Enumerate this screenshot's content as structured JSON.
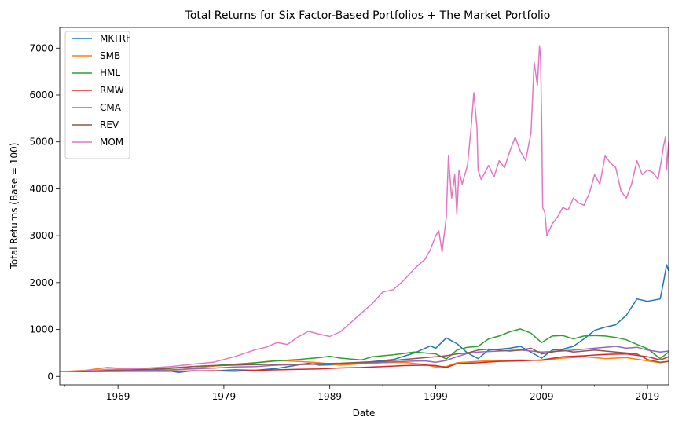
{
  "chart_data": {
    "type": "line",
    "title": "Total Returns for Six Factor-Based Portfolios + The Market Portfolio",
    "xlabel": "Date",
    "ylabel": "Total Returns (Base = 100)",
    "xlim": [
      1963.5,
      2021.0
    ],
    "ylim": [
      -180,
      7440
    ],
    "x_ticks": [
      1969,
      1979,
      1989,
      1999,
      2009,
      2019
    ],
    "y_ticks": [
      0,
      1000,
      2000,
      3000,
      4000,
      5000,
      6000,
      7000
    ],
    "legend_position": "upper left",
    "grid": false,
    "series": [
      {
        "name": "MKTRF",
        "color": "#1f77b4",
        "points": [
          [
            1963.5,
            100
          ],
          [
            1966,
            115
          ],
          [
            1968,
            135
          ],
          [
            1970,
            110
          ],
          [
            1972,
            140
          ],
          [
            1973,
            150
          ],
          [
            1974.7,
            85
          ],
          [
            1976,
            120
          ],
          [
            1978,
            115
          ],
          [
            1980,
            140
          ],
          [
            1982,
            130
          ],
          [
            1984,
            170
          ],
          [
            1987,
            280
          ],
          [
            1988,
            240
          ],
          [
            1990,
            250
          ],
          [
            1992,
            290
          ],
          [
            1995,
            360
          ],
          [
            1997,
            500
          ],
          [
            1998.5,
            650
          ],
          [
            1999,
            600
          ],
          [
            2000,
            820
          ],
          [
            2001,
            700
          ],
          [
            2002,
            500
          ],
          [
            2003,
            380
          ],
          [
            2004,
            560
          ],
          [
            2006,
            600
          ],
          [
            2007,
            640
          ],
          [
            2009,
            390
          ],
          [
            2010,
            560
          ],
          [
            2011,
            580
          ],
          [
            2012,
            640
          ],
          [
            2013,
            800
          ],
          [
            2014,
            980
          ],
          [
            2015,
            1050
          ],
          [
            2016,
            1100
          ],
          [
            2017,
            1300
          ],
          [
            2018,
            1650
          ],
          [
            2019,
            1600
          ],
          [
            2020.2,
            1650
          ],
          [
            2020.5,
            2000
          ],
          [
            2020.8,
            2380
          ],
          [
            2021,
            2250
          ]
        ]
      },
      {
        "name": "SMB",
        "color": "#ff7f0e",
        "points": [
          [
            1963.5,
            100
          ],
          [
            1966,
            130
          ],
          [
            1968,
            190
          ],
          [
            1970,
            160
          ],
          [
            1972,
            150
          ],
          [
            1974,
            130
          ],
          [
            1976,
            170
          ],
          [
            1978,
            220
          ],
          [
            1980,
            250
          ],
          [
            1982,
            290
          ],
          [
            1984,
            340
          ],
          [
            1986,
            320
          ],
          [
            1988,
            290
          ],
          [
            1990,
            240
          ],
          [
            1992,
            270
          ],
          [
            1994,
            290
          ],
          [
            1996,
            300
          ],
          [
            1998,
            250
          ],
          [
            1999,
            200
          ],
          [
            2000,
            210
          ],
          [
            2001,
            290
          ],
          [
            2003,
            320
          ],
          [
            2005,
            340
          ],
          [
            2007,
            350
          ],
          [
            2009,
            340
          ],
          [
            2011,
            390
          ],
          [
            2013,
            420
          ],
          [
            2015,
            380
          ],
          [
            2017,
            400
          ],
          [
            2019,
            330
          ],
          [
            2020.2,
            290
          ],
          [
            2021,
            320
          ]
        ]
      },
      {
        "name": "HML",
        "color": "#2ca02c",
        "points": [
          [
            1963.5,
            100
          ],
          [
            1966,
            115
          ],
          [
            1968,
            125
          ],
          [
            1970,
            135
          ],
          [
            1972,
            140
          ],
          [
            1974,
            170
          ],
          [
            1976,
            210
          ],
          [
            1978,
            230
          ],
          [
            1980,
            260
          ],
          [
            1982,
            290
          ],
          [
            1984,
            330
          ],
          [
            1986,
            360
          ],
          [
            1988,
            400
          ],
          [
            1989,
            430
          ],
          [
            1990,
            390
          ],
          [
            1992,
            350
          ],
          [
            1993,
            420
          ],
          [
            1995,
            460
          ],
          [
            1997,
            520
          ],
          [
            1999,
            480
          ],
          [
            2000,
            370
          ],
          [
            2001,
            560
          ],
          [
            2002,
            620
          ],
          [
            2003,
            640
          ],
          [
            2004,
            800
          ],
          [
            2005,
            860
          ],
          [
            2006,
            950
          ],
          [
            2007,
            1010
          ],
          [
            2008,
            920
          ],
          [
            2009,
            720
          ],
          [
            2010,
            860
          ],
          [
            2011,
            870
          ],
          [
            2012,
            800
          ],
          [
            2013,
            860
          ],
          [
            2014,
            870
          ],
          [
            2015,
            860
          ],
          [
            2016,
            830
          ],
          [
            2017,
            780
          ],
          [
            2018,
            680
          ],
          [
            2019,
            590
          ],
          [
            2020.2,
            380
          ],
          [
            2021,
            520
          ]
        ]
      },
      {
        "name": "RMW",
        "color": "#d62728",
        "points": [
          [
            1963.5,
            100
          ],
          [
            1966,
            100
          ],
          [
            1968,
            105
          ],
          [
            1970,
            110
          ],
          [
            1972,
            110
          ],
          [
            1974,
            110
          ],
          [
            1976,
            115
          ],
          [
            1978,
            120
          ],
          [
            1980,
            110
          ],
          [
            1982,
            130
          ],
          [
            1984,
            140
          ],
          [
            1986,
            150
          ],
          [
            1988,
            160
          ],
          [
            1990,
            180
          ],
          [
            1992,
            190
          ],
          [
            1994,
            210
          ],
          [
            1996,
            230
          ],
          [
            1998,
            240
          ],
          [
            1999,
            230
          ],
          [
            2000,
            190
          ],
          [
            2001,
            270
          ],
          [
            2003,
            290
          ],
          [
            2005,
            320
          ],
          [
            2007,
            330
          ],
          [
            2009,
            350
          ],
          [
            2011,
            420
          ],
          [
            2013,
            440
          ],
          [
            2015,
            470
          ],
          [
            2017,
            480
          ],
          [
            2019,
            420
          ],
          [
            2020.2,
            350
          ],
          [
            2021,
            420
          ]
        ]
      },
      {
        "name": "CMA",
        "color": "#9467bd",
        "points": [
          [
            1963.5,
            100
          ],
          [
            1966,
            105
          ],
          [
            1968,
            110
          ],
          [
            1970,
            120
          ],
          [
            1972,
            125
          ],
          [
            1974,
            140
          ],
          [
            1976,
            160
          ],
          [
            1978,
            175
          ],
          [
            1980,
            200
          ],
          [
            1982,
            210
          ],
          [
            1984,
            240
          ],
          [
            1986,
            250
          ],
          [
            1988,
            260
          ],
          [
            1990,
            270
          ],
          [
            1992,
            280
          ],
          [
            1994,
            300
          ],
          [
            1996,
            320
          ],
          [
            1998,
            330
          ],
          [
            1999,
            300
          ],
          [
            2000,
            340
          ],
          [
            2001,
            420
          ],
          [
            2002,
            490
          ],
          [
            2003,
            520
          ],
          [
            2005,
            540
          ],
          [
            2007,
            560
          ],
          [
            2009,
            520
          ],
          [
            2011,
            540
          ],
          [
            2013,
            580
          ],
          [
            2014,
            600
          ],
          [
            2015,
            620
          ],
          [
            2016,
            640
          ],
          [
            2017,
            600
          ],
          [
            2018,
            620
          ],
          [
            2019,
            560
          ],
          [
            2020.2,
            520
          ],
          [
            2021,
            540
          ]
        ]
      },
      {
        "name": "REV",
        "color": "#8c564b",
        "points": [
          [
            1963.5,
            100
          ],
          [
            1966,
            110
          ],
          [
            1968,
            130
          ],
          [
            1970,
            140
          ],
          [
            1972,
            150
          ],
          [
            1974,
            180
          ],
          [
            1976,
            210
          ],
          [
            1978,
            230
          ],
          [
            1980,
            240
          ],
          [
            1982,
            250
          ],
          [
            1984,
            260
          ],
          [
            1986,
            260
          ],
          [
            1988,
            270
          ],
          [
            1990,
            280
          ],
          [
            1992,
            300
          ],
          [
            1994,
            320
          ],
          [
            1996,
            360
          ],
          [
            1998,
            400
          ],
          [
            1999,
            420
          ],
          [
            2000,
            440
          ],
          [
            2001,
            480
          ],
          [
            2002,
            500
          ],
          [
            2003,
            560
          ],
          [
            2004,
            580
          ],
          [
            2005,
            560
          ],
          [
            2006,
            540
          ],
          [
            2007,
            560
          ],
          [
            2008,
            600
          ],
          [
            2009,
            480
          ],
          [
            2010,
            520
          ],
          [
            2011,
            560
          ],
          [
            2012,
            520
          ],
          [
            2013,
            540
          ],
          [
            2014,
            560
          ],
          [
            2016,
            520
          ],
          [
            2018,
            480
          ],
          [
            2019,
            360
          ],
          [
            2020.2,
            300
          ],
          [
            2021,
            320
          ]
        ]
      },
      {
        "name": "MOM",
        "color": "#e377c2",
        "points": [
          [
            1963.5,
            100
          ],
          [
            1966,
            120
          ],
          [
            1968,
            150
          ],
          [
            1970,
            160
          ],
          [
            1972,
            180
          ],
          [
            1974,
            210
          ],
          [
            1976,
            260
          ],
          [
            1978,
            300
          ],
          [
            1980,
            420
          ],
          [
            1982,
            570
          ],
          [
            1983,
            620
          ],
          [
            1984,
            720
          ],
          [
            1985,
            680
          ],
          [
            1986,
            840
          ],
          [
            1987,
            960
          ],
          [
            1988,
            900
          ],
          [
            1989,
            850
          ],
          [
            1990,
            950
          ],
          [
            1991,
            1150
          ],
          [
            1992,
            1350
          ],
          [
            1993,
            1550
          ],
          [
            1994,
            1800
          ],
          [
            1995,
            1850
          ],
          [
            1996,
            2050
          ],
          [
            1997,
            2300
          ],
          [
            1998,
            2500
          ],
          [
            1998.5,
            2700
          ],
          [
            1999,
            3000
          ],
          [
            1999.3,
            3100
          ],
          [
            1999.6,
            2650
          ],
          [
            2000,
            3400
          ],
          [
            2000.2,
            4700
          ],
          [
            2000.5,
            3800
          ],
          [
            2000.8,
            4300
          ],
          [
            2001,
            3450
          ],
          [
            2001.2,
            4400
          ],
          [
            2001.5,
            4100
          ],
          [
            2002,
            4500
          ],
          [
            2002.3,
            5200
          ],
          [
            2002.6,
            6050
          ],
          [
            2002.9,
            5300
          ],
          [
            2003,
            4400
          ],
          [
            2003.3,
            4200
          ],
          [
            2004,
            4500
          ],
          [
            2004.5,
            4250
          ],
          [
            2005,
            4600
          ],
          [
            2005.5,
            4450
          ],
          [
            2006,
            4800
          ],
          [
            2006.5,
            5100
          ],
          [
            2007,
            4800
          ],
          [
            2007.5,
            4600
          ],
          [
            2008,
            5200
          ],
          [
            2008.3,
            6700
          ],
          [
            2008.6,
            6200
          ],
          [
            2008.8,
            7050
          ],
          [
            2008.9,
            6800
          ],
          [
            2009,
            5500
          ],
          [
            2009.1,
            3600
          ],
          [
            2009.3,
            3500
          ],
          [
            2009.5,
            3000
          ],
          [
            2010,
            3250
          ],
          [
            2010.5,
            3400
          ],
          [
            2011,
            3600
          ],
          [
            2011.5,
            3550
          ],
          [
            2012,
            3800
          ],
          [
            2012.5,
            3700
          ],
          [
            2013,
            3650
          ],
          [
            2013.5,
            3900
          ],
          [
            2014,
            4300
          ],
          [
            2014.5,
            4100
          ],
          [
            2015,
            4700
          ],
          [
            2015.5,
            4550
          ],
          [
            2016,
            4450
          ],
          [
            2016.5,
            3950
          ],
          [
            2017,
            3800
          ],
          [
            2017.5,
            4100
          ],
          [
            2018,
            4600
          ],
          [
            2018.5,
            4300
          ],
          [
            2019,
            4400
          ],
          [
            2019.5,
            4350
          ],
          [
            2020,
            4200
          ],
          [
            2020.3,
            4600
          ],
          [
            2020.5,
            4900
          ],
          [
            2020.7,
            5120
          ],
          [
            2020.8,
            4400
          ],
          [
            2021,
            5000
          ]
        ]
      }
    ]
  }
}
